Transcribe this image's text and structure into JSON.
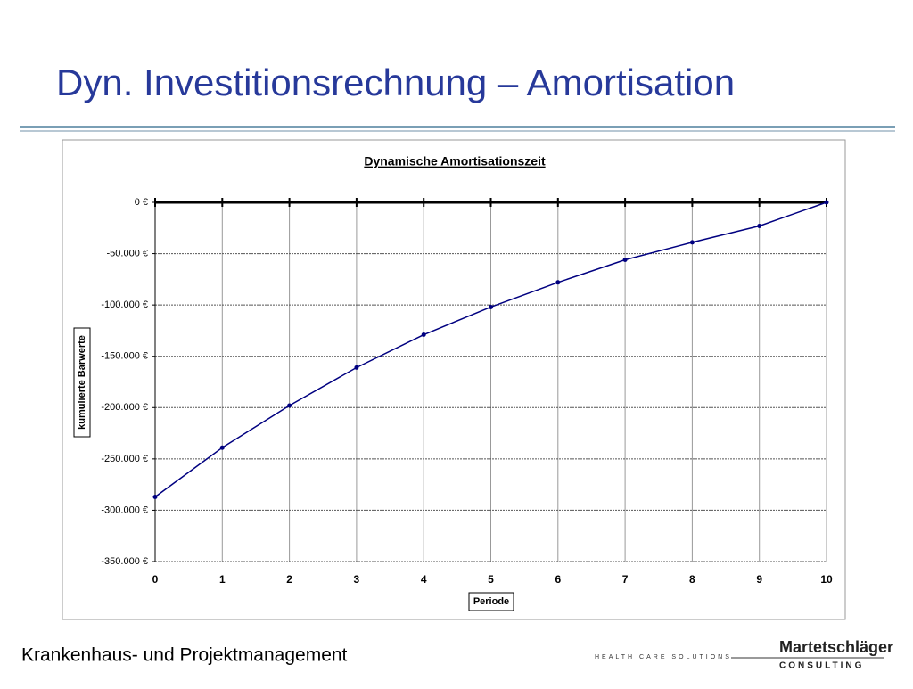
{
  "slide_title": "Dyn. Investitionsrechnung – Amortisation",
  "footer": "Krankenhaus- und Projektmanagement",
  "logo": {
    "tagline": "HEALTH CARE SOLUTIONS",
    "name": "Martetschläger",
    "sub": "CONSULTING"
  },
  "chart_data": {
    "type": "line",
    "title": "Dynamische Amortisationszeit",
    "x_label": "Periode",
    "y_label": "kumulierte Barwerte",
    "x": [
      0,
      1,
      2,
      3,
      4,
      5,
      6,
      7,
      8,
      9,
      10
    ],
    "series": [
      {
        "name": "kumulierte Barwerte",
        "color": "#000080",
        "values": [
          -287000,
          -239000,
          -198000,
          -161000,
          -129000,
          -102000,
          -78000,
          -56000,
          -39000,
          -23000,
          0
        ]
      }
    ],
    "xlim": [
      0,
      10
    ],
    "xticks": [
      0,
      1,
      2,
      3,
      4,
      5,
      6,
      7,
      8,
      9,
      10
    ],
    "ylim": [
      -350000,
      0
    ],
    "yticks": [
      {
        "value": 0,
        "label": "0 €"
      },
      {
        "value": -50000,
        "label": "-50.000 €"
      },
      {
        "value": -100000,
        "label": "-100.000 €"
      },
      {
        "value": -150000,
        "label": "-150.000 €"
      },
      {
        "value": -200000,
        "label": "-200.000 €"
      },
      {
        "value": -250000,
        "label": "-250.000 €"
      },
      {
        "value": -300000,
        "label": "-300.000 €"
      },
      {
        "value": -350000,
        "label": "-350.000 €"
      }
    ],
    "grid": true
  }
}
